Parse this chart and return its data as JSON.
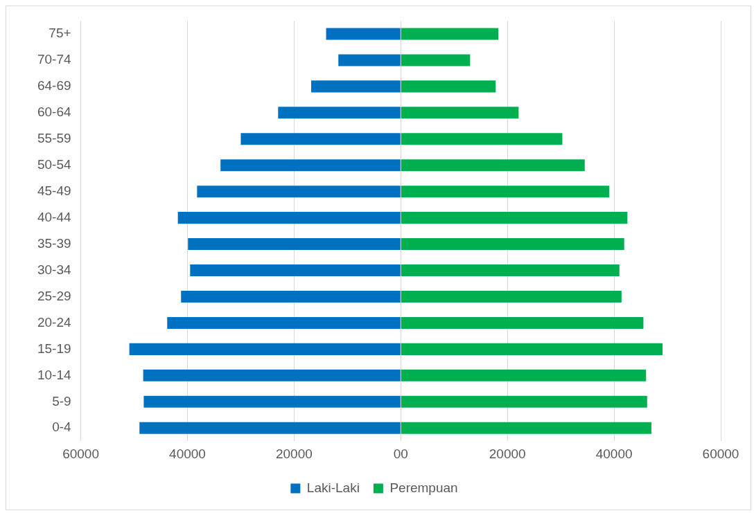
{
  "chart_data": {
    "type": "bar",
    "orientation": "horizontal",
    "stacked": true,
    "categories": [
      "75+",
      "70-74",
      "64-69",
      "60-64",
      "55-59",
      "50-54",
      "45-49",
      "40-44",
      "35-39",
      "30-34",
      "25-29",
      "20-24",
      "15-19",
      "10-14",
      "5-9",
      "0-4"
    ],
    "series": [
      {
        "name": "Laki-Laki",
        "color": "#0070c0",
        "values": [
          -14000,
          -11700,
          -16800,
          -23000,
          -30000,
          -33800,
          -38200,
          -41800,
          -39900,
          -39500,
          -41200,
          -43800,
          -50900,
          -48300,
          -48200,
          -49000
        ]
      },
      {
        "name": "Perempuan",
        "color": "#00b050",
        "values": [
          18300,
          13000,
          17800,
          22100,
          30300,
          34500,
          39100,
          42500,
          41900,
          41000,
          41400,
          45500,
          49100,
          46000,
          46200,
          47000
        ]
      }
    ],
    "xlim": [
      -60000,
      60000
    ],
    "xticks": [
      {
        "value": -60000,
        "label": "60000"
      },
      {
        "value": -40000,
        "label": "40000"
      },
      {
        "value": -20000,
        "label": "20000"
      },
      {
        "value": 0,
        "label": "00"
      },
      20000,
      40000,
      60000
    ],
    "grid": "x",
    "legend": "bottom"
  }
}
